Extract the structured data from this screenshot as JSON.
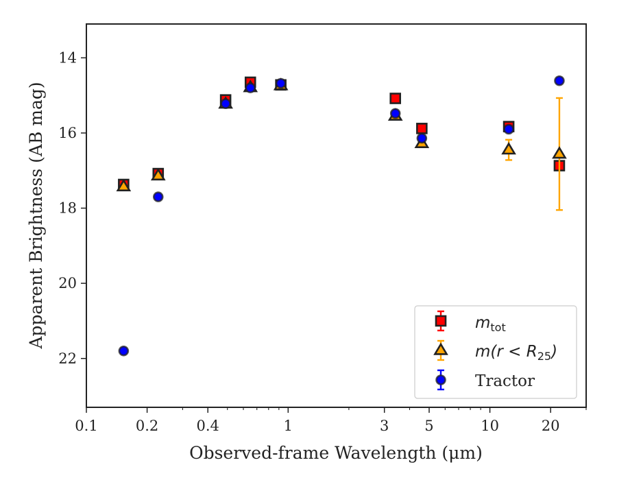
{
  "chart_data": {
    "type": "scatter",
    "title": "",
    "xlabel": "Observed-frame Wavelength (μm)",
    "ylabel": "Apparent Brightness (AB mag)",
    "x_scale": "log",
    "xlim": [
      0.1,
      30
    ],
    "ylim": [
      23.3,
      13.1
    ],
    "y_inverted": true,
    "grid": false,
    "legend_position": "lower-right",
    "x_ticks": [
      {
        "value": 0.1,
        "label": "0.1"
      },
      {
        "value": 0.2,
        "label": "0.2"
      },
      {
        "value": 0.4,
        "label": "0.4"
      },
      {
        "value": 1,
        "label": "1"
      },
      {
        "value": 3,
        "label": "3"
      },
      {
        "value": 5,
        "label": "5"
      },
      {
        "value": 10,
        "label": "10"
      },
      {
        "value": 20,
        "label": "20"
      }
    ],
    "y_ticks": [
      {
        "value": 14,
        "label": "14"
      },
      {
        "value": 16,
        "label": "16"
      },
      {
        "value": 18,
        "label": "18"
      },
      {
        "value": 20,
        "label": "20"
      },
      {
        "value": 22,
        "label": "22"
      }
    ],
    "series": [
      {
        "name": "m_tot",
        "marker": "square",
        "color": "#ff0000",
        "edge_color": "#222222",
        "error_color": "#ff0000",
        "x": [
          0.153,
          0.227,
          0.49,
          0.65,
          0.92,
          3.4,
          4.6,
          12.4,
          22.1
        ],
        "y": [
          17.37,
          17.08,
          15.12,
          14.65,
          14.72,
          15.08,
          15.88,
          15.83,
          16.87
        ],
        "yerr": [
          0.05,
          0.05,
          0.03,
          0.03,
          0.03,
          0.03,
          0.04,
          0.05,
          0.1
        ]
      },
      {
        "name": "m(r < R25)",
        "marker": "triangle",
        "color": "#ffa500",
        "edge_color": "#222222",
        "error_color": "#ffa500",
        "x": [
          0.153,
          0.227,
          0.49,
          0.65,
          0.92,
          3.4,
          4.6,
          12.4,
          22.1
        ],
        "y": [
          17.43,
          17.14,
          15.23,
          14.79,
          14.74,
          15.55,
          16.28,
          16.45,
          16.56
        ],
        "yerr": [
          0.04,
          0.04,
          0.03,
          0.03,
          0.03,
          0.03,
          0.04,
          0.27,
          1.49
        ]
      },
      {
        "name": "Tractor",
        "marker": "circle",
        "color": "#0000ff",
        "edge_color": "#222222",
        "error_color": "#0000ff",
        "x": [
          0.153,
          0.227,
          0.49,
          0.65,
          0.92,
          3.4,
          4.6,
          12.4,
          22.1
        ],
        "y": [
          21.8,
          17.7,
          15.22,
          14.8,
          14.68,
          15.48,
          16.14,
          15.9,
          14.61
        ],
        "yerr": [
          0.03,
          0.03,
          0.03,
          0.03,
          0.03,
          0.03,
          0.04,
          0.05,
          0.06
        ]
      }
    ]
  },
  "legend": {
    "m_tot": {
      "base": "m",
      "sub": "tot"
    },
    "m_r": {
      "pre": "m",
      "mid": "(r < R",
      "sub": "25",
      "post": ")"
    },
    "tractor": "Tractor"
  }
}
